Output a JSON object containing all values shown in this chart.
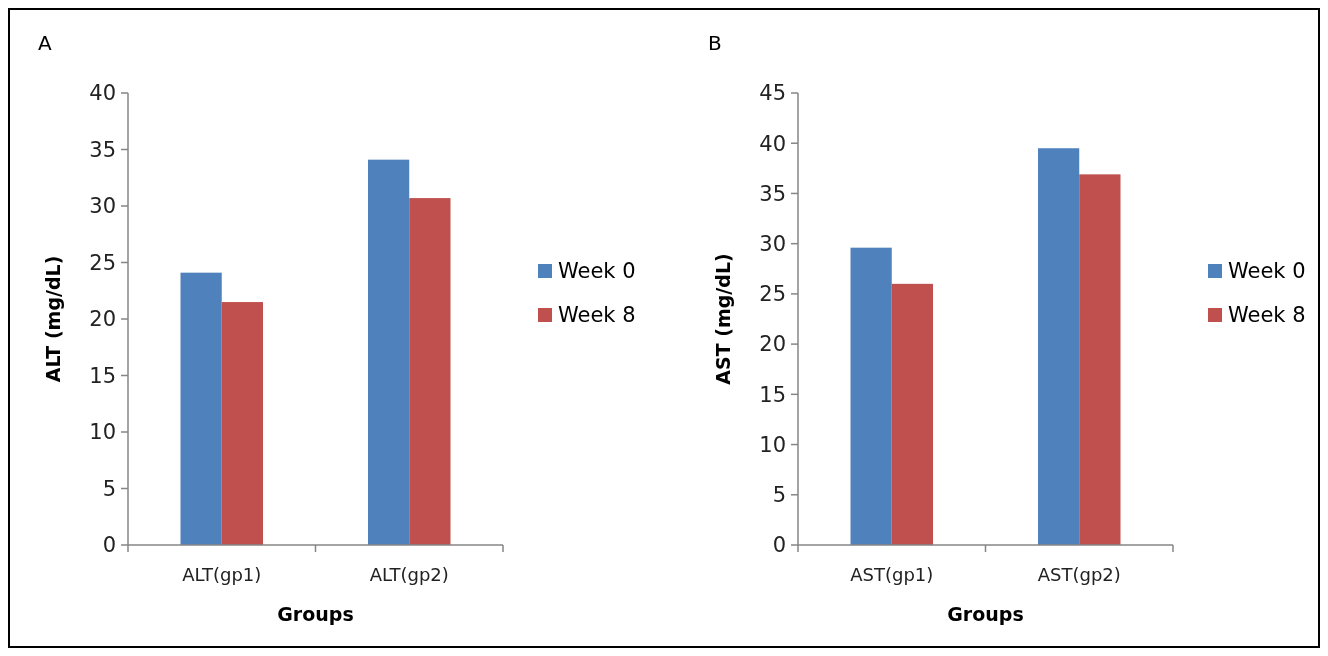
{
  "chart_data": [
    {
      "type": "bar",
      "title": "A",
      "xlabel": "Groups",
      "ylabel": "ALT  (mg/dL)",
      "categories": [
        "ALT(gp1)",
        "ALT(gp2)"
      ],
      "series": [
        {
          "name": "Week 0",
          "color": "#4f81bd",
          "values": [
            24.1,
            34.1
          ]
        },
        {
          "name": "Week 8",
          "color": "#c0504d",
          "values": [
            21.5,
            30.7
          ]
        }
      ],
      "ylim": [
        0,
        40
      ],
      "yticks": [
        0,
        5,
        10,
        15,
        20,
        25,
        30,
        35,
        40
      ],
      "grid": false,
      "legend": "right"
    },
    {
      "type": "bar",
      "title": "B",
      "xlabel": "Groups",
      "ylabel": "AST  (mg/dL)",
      "categories": [
        "AST(gp1)",
        "AST(gp2)"
      ],
      "series": [
        {
          "name": "Week 0",
          "color": "#4f81bd",
          "values": [
            29.6,
            39.5
          ]
        },
        {
          "name": "Week 8",
          "color": "#c0504d",
          "values": [
            26.0,
            36.9
          ]
        }
      ],
      "ylim": [
        0,
        45
      ],
      "yticks": [
        0,
        5,
        10,
        15,
        20,
        25,
        30,
        35,
        40,
        45
      ],
      "grid": false,
      "legend": "right"
    }
  ]
}
